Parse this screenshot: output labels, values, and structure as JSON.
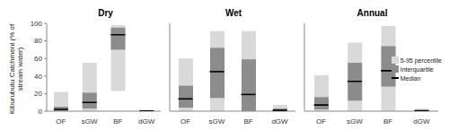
{
  "chart_data": [
    {
      "type": "bar",
      "title": "Dry",
      "ylabel": "Kiburubutu Catchment (% of stream water)",
      "categories": [
        "OF",
        "sGW",
        "BF",
        "dGW"
      ],
      "ylim": [
        0,
        100
      ],
      "yticks": [
        0,
        20,
        40,
        60,
        80,
        100
      ],
      "grid": false,
      "stacked": false,
      "series": [
        {
          "name": "5-95 percentile",
          "type": "bar",
          "color": "#d9d9d9",
          "values": [
            [
              0,
              22
            ],
            [
              0,
              55
            ],
            [
              23,
              98
            ],
            [
              0,
              1
            ]
          ]
        },
        {
          "name": "Interquartile",
          "type": "bar",
          "color": "#8c8c8c",
          "values": [
            [
              0,
              5
            ],
            [
              3,
              21
            ],
            [
              70,
              95
            ],
            [
              0,
              0.5
            ]
          ]
        },
        {
          "name": "Median",
          "type": "scatter",
          "marker": "hline",
          "color": "#000000",
          "values": [
            2,
            10,
            87,
            0.3
          ]
        }
      ]
    },
    {
      "type": "bar",
      "title": "Wet",
      "categories": [
        "OF",
        "sGW",
        "BF",
        "dGW"
      ],
      "ylim": [
        0,
        100
      ],
      "yticks": [
        0,
        20,
        40,
        60,
        80,
        100
      ],
      "grid": false,
      "stacked": false,
      "tick_labels": "x",
      "series": [
        {
          "name": "5-95 percentile",
          "type": "bar",
          "color": "#d9d9d9",
          "values": [
            [
              0,
              60
            ],
            [
              0,
              91
            ],
            [
              0,
              91
            ],
            [
              0,
              7
            ]
          ]
        },
        {
          "name": "Interquartile",
          "type": "bar",
          "color": "#8c8c8c",
          "values": [
            [
              4,
              29
            ],
            [
              15,
              72
            ],
            [
              0,
              59
            ],
            [
              0,
              3
            ]
          ]
        },
        {
          "name": "Median",
          "type": "scatter",
          "marker": "hline",
          "color": "#000000",
          "values": [
            14,
            45,
            19,
            1
          ]
        }
      ]
    },
    {
      "type": "bar",
      "title": "Annual",
      "categories": [
        "OF",
        "sGW",
        "BF",
        "dGW"
      ],
      "ylim": [
        0,
        100
      ],
      "yticks": [
        0,
        20,
        40,
        60,
        80,
        100
      ],
      "grid": false,
      "stacked": false,
      "tick_labels": "x",
      "legend": "lower right",
      "series": [
        {
          "name": "5-95 percentile",
          "type": "bar",
          "color": "#d9d9d9",
          "values": [
            [
              0,
              41
            ],
            [
              0,
              78
            ],
            [
              0,
              97
            ],
            [
              0,
              3
            ]
          ]
        },
        {
          "name": "Interquartile",
          "type": "bar",
          "color": "#8c8c8c",
          "values": [
            [
              2,
              16
            ],
            [
              12,
              55
            ],
            [
              28,
              74
            ],
            [
              0,
              1
            ]
          ]
        },
        {
          "name": "Median",
          "type": "scatter",
          "marker": "hline",
          "color": "#000000",
          "values": [
            7,
            34,
            46,
            0.5
          ]
        }
      ]
    }
  ]
}
